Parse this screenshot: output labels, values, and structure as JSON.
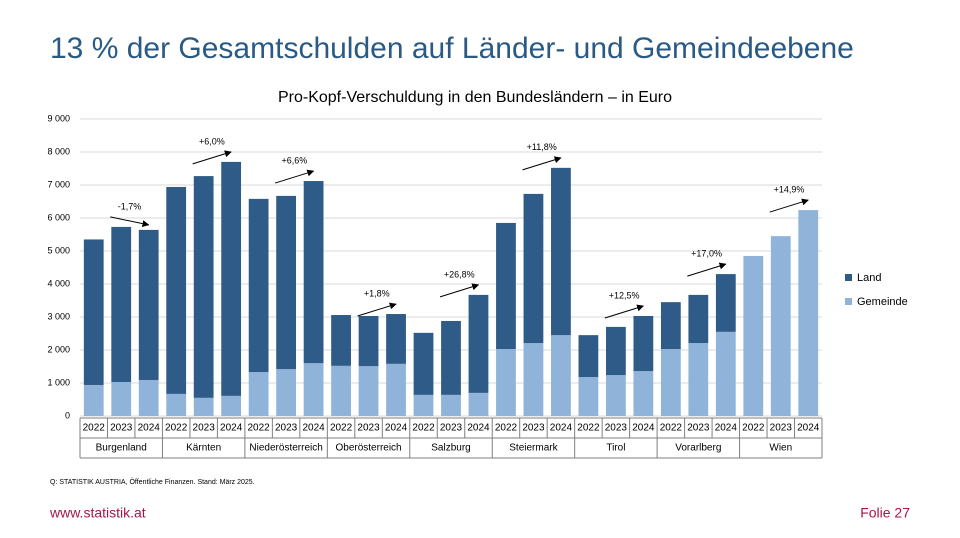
{
  "page": {
    "title": "13 % der Gesamtschulden auf Länder- und Gemeindeebene",
    "source": "Q: STATISTIK AUSTRIA, Öffentliche Finanzen. Stand: März 2025.",
    "url": "www.statistik.at",
    "slide": "Folie 27"
  },
  "chart_data": {
    "type": "stacked-bar",
    "title": "Pro-Kopf-Verschuldung in den Bundesländern – in Euro",
    "categories": [
      "2022",
      "2023",
      "2024",
      "2022",
      "2023",
      "2024",
      "2022",
      "2023",
      "2024",
      "2022",
      "2023",
      "2024",
      "2022",
      "2023",
      "2024",
      "2022",
      "2023",
      "2024",
      "2022",
      "2023",
      "2024",
      "2022",
      "2023",
      "2024",
      "2022",
      "2023",
      "2024"
    ],
    "groups": [
      "Burgenland",
      "Kärnten",
      "Niederösterreich",
      "Oberösterreich",
      "Salzburg",
      "Steiermark",
      "Tirol",
      "Vorarlberg",
      "Wien"
    ],
    "group_annotations": [
      "-1,7%",
      "+6,0%",
      "+6,6%",
      "+1,8%",
      "+26,8%",
      "+11,8%",
      "+12,5%",
      "+17,0%",
      "+14,9%"
    ],
    "series": [
      {
        "name": "Land",
        "color": "#2e5b87",
        "values": [
          4410,
          4700,
          4550,
          6270,
          6720,
          7090,
          5250,
          5250,
          5520,
          1540,
          1520,
          1510,
          1880,
          2240,
          2970,
          3820,
          4520,
          5070,
          1270,
          1460,
          1670,
          1420,
          1460,
          1750,
          0,
          0,
          0
        ]
      },
      {
        "name": "Gemeinde",
        "color": "#8fb3d9",
        "values": [
          940,
          1030,
          1090,
          670,
          550,
          610,
          1330,
          1420,
          1600,
          1520,
          1510,
          1580,
          640,
          640,
          700,
          2030,
          2210,
          2450,
          1180,
          1240,
          1360,
          2030,
          2210,
          2550,
          4850,
          5450,
          6240
        ]
      }
    ],
    "ylim": [
      0,
      9000
    ],
    "yticks": [
      0,
      {
        "value": 1000,
        "label": "1 000"
      },
      {
        "value": 2000,
        "label": "2 000"
      },
      {
        "value": 3000,
        "label": "3 000"
      },
      {
        "value": 4000,
        "label": "4 000"
      },
      {
        "value": 5000,
        "label": "5 000"
      },
      {
        "value": 6000,
        "label": "6 000"
      },
      {
        "value": 7000,
        "label": "7 000"
      },
      {
        "value": 8000,
        "label": "8 000"
      },
      {
        "value": 9000,
        "label": "9 000"
      }
    ],
    "grid": true,
    "legend": "right"
  }
}
